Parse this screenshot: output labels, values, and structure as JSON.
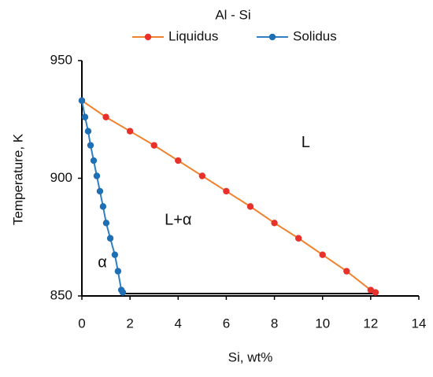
{
  "chart_data": {
    "type": "line",
    "title": "Al - Si",
    "x_label": "Si, wt%",
    "y_label": "Temperature, K",
    "series": [
      {
        "name": "Liquidus",
        "color": "#f0822e",
        "marker_color": "#e8312a",
        "x": [
          0,
          1,
          2,
          3,
          4,
          5,
          6,
          7,
          8,
          9,
          10,
          11,
          12,
          12.2
        ],
        "values": [
          933,
          926,
          920,
          914,
          907.5,
          901,
          894.5,
          888,
          881,
          874.5,
          867.5,
          860.5,
          852.5,
          851.5
        ]
      },
      {
        "name": "Solidus",
        "color": "#2f7fc1",
        "marker_color": "#1f6fb4",
        "x": [
          0,
          0.13,
          0.26,
          0.36,
          0.49,
          0.62,
          0.75,
          0.88,
          1.01,
          1.18,
          1.37,
          1.5,
          1.64,
          1.7
        ],
        "values": [
          933,
          926,
          920,
          914,
          907.5,
          901,
          894.5,
          888,
          881,
          874.5,
          867.5,
          860.5,
          852.5,
          851.5
        ]
      }
    ],
    "lines": [
      {
        "x": [
          1.7,
          12.2
        ],
        "values": [
          851,
          851
        ],
        "color": "#000000"
      }
    ],
    "annotations": [
      {
        "text": "L",
        "x": 9.3,
        "y": 915
      },
      {
        "text": "L+α",
        "x": 4,
        "y": 882
      },
      {
        "text": "α",
        "x": 0.85,
        "y": 864
      }
    ],
    "xlim": [
      0,
      14
    ],
    "xticks": [
      0,
      2,
      4,
      6,
      8,
      10,
      12,
      14
    ],
    "ylim": [
      850,
      950
    ],
    "yticks": [
      850,
      900,
      950
    ],
    "grid": false
  }
}
